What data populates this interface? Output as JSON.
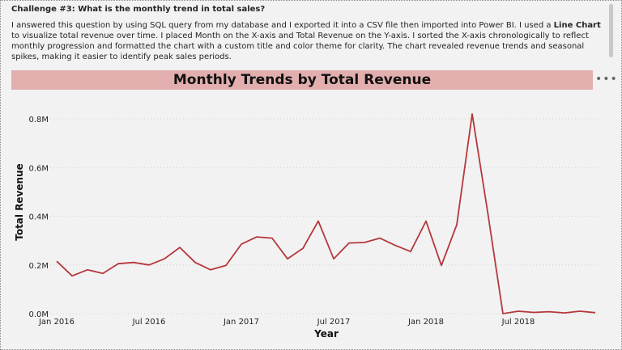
{
  "challenge": {
    "title": "Challenge #3: What is the monthly trend in total sales?",
    "text_before": "I answered this question by using SQL query from my database and I exported it into a CSV file then imported into Power BI. I used a ",
    "text_bold": "Line Chart",
    "text_after": " to visualize total revenue over time. I placed Month on the X-axis and Total Revenue on the Y-axis. I sorted the X-axis chronologically to reflect monthly progression and formatted the chart with a custom title and color theme for clarity. The chart revealed revenue trends and seasonal spikes, making it easier to identify peak sales periods."
  },
  "visual_header": {
    "more_options_icon": "more-options-icon"
  },
  "colors": {
    "line": "#b5373c",
    "title_background": "#e3aeae",
    "background": "#f2f2f2",
    "grid": "#d0d0d0"
  },
  "chart_data": {
    "type": "line",
    "title": "Monthly Trends by Total Revenue",
    "xlabel": "Year",
    "ylabel": "Total Revenue",
    "x": [
      "2016-01",
      "2016-02",
      "2016-03",
      "2016-04",
      "2016-05",
      "2016-06",
      "2016-07",
      "2016-08",
      "2016-09",
      "2016-10",
      "2016-11",
      "2016-12",
      "2017-01",
      "2017-02",
      "2017-03",
      "2017-04",
      "2017-05",
      "2017-06",
      "2017-07",
      "2017-08",
      "2017-09",
      "2017-10",
      "2017-11",
      "2017-12",
      "2018-01",
      "2018-02",
      "2018-03",
      "2018-04",
      "2018-05",
      "2018-06",
      "2018-07",
      "2018-08",
      "2018-09",
      "2018-10",
      "2018-11",
      "2018-12"
    ],
    "values": [
      0.215,
      0.155,
      0.18,
      0.165,
      0.205,
      0.21,
      0.2,
      0.225,
      0.272,
      0.21,
      0.18,
      0.198,
      0.285,
      0.315,
      0.31,
      0.225,
      0.268,
      0.38,
      0.225,
      0.29,
      0.292,
      0.31,
      0.28,
      0.255,
      0.38,
      0.198,
      0.365,
      0.82,
      0.42,
      0.0,
      0.01,
      0.005,
      0.008,
      0.003,
      0.01,
      0.004
    ],
    "value_unit": "M",
    "ylim": [
      0,
      0.9
    ],
    "y_ticks": [
      0,
      0.2,
      0.4,
      0.6,
      0.8
    ],
    "y_tick_labels": [
      "0.0M",
      "0.2M",
      "0.4M",
      "0.6M",
      "0.8M"
    ],
    "x_tick_labels": [
      "Jan 2016",
      "Jul 2016",
      "Jan 2017",
      "Jul 2017",
      "Jan 2018",
      "Jul 2018"
    ],
    "x_tick_indices": [
      0,
      6,
      12,
      18,
      24,
      30
    ],
    "grid": true
  }
}
